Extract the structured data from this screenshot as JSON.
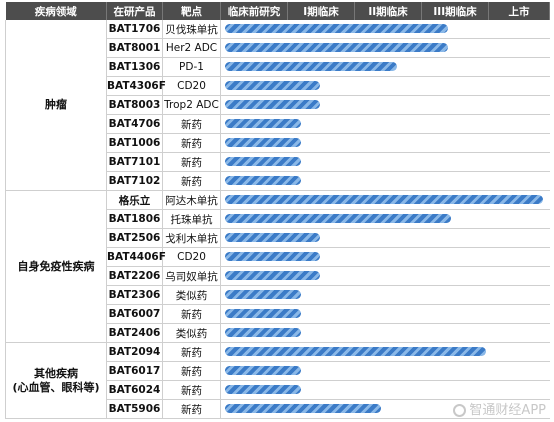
{
  "headers": [
    "疾病领域",
    "在研产品",
    "靶点",
    "临床前研究",
    "I期临床",
    "II期临床",
    "III期临床",
    "上市"
  ],
  "bar_color": "#3b7bc7",
  "stages": [
    "preclinical",
    "phase1",
    "phase2",
    "phase3",
    "market"
  ],
  "groups": [
    {
      "area": "肿瘤",
      "rows": [
        {
          "product": "BAT1706",
          "target": "贝伐珠单抗",
          "progress": 0.7
        },
        {
          "product": "BAT8001",
          "target": "Her2 ADC",
          "progress": 0.7
        },
        {
          "product": "BAT1306",
          "target": "PD-1",
          "progress": 0.54
        },
        {
          "product": "BAT4306F",
          "target": "CD20",
          "progress": 0.3
        },
        {
          "product": "BAT8003",
          "target": "Trop2 ADC",
          "progress": 0.3
        },
        {
          "product": "BAT4706",
          "target": "新药",
          "progress": 0.24
        },
        {
          "product": "BAT1006",
          "target": "新药",
          "progress": 0.24
        },
        {
          "product": "BAT7101",
          "target": "新药",
          "progress": 0.24
        },
        {
          "product": "BAT7102",
          "target": "新药",
          "progress": 0.24
        }
      ]
    },
    {
      "area": "自身免疫性疾病",
      "rows": [
        {
          "product": "格乐立",
          "target": "阿达木单抗",
          "progress": 1.0
        },
        {
          "product": "BAT1806",
          "target": "托珠单抗",
          "progress": 0.71
        },
        {
          "product": "BAT2506",
          "target": "戈利木单抗",
          "progress": 0.3
        },
        {
          "product": "BAT4406F",
          "target": "CD20",
          "progress": 0.3
        },
        {
          "product": "BAT2206",
          "target": "乌司奴单抗",
          "progress": 0.3
        },
        {
          "product": "BAT2306",
          "target": "类似药",
          "progress": 0.24
        },
        {
          "product": "BAT6007",
          "target": "新药",
          "progress": 0.24
        },
        {
          "product": "BAT2406",
          "target": "类似药",
          "progress": 0.24
        }
      ]
    },
    {
      "area": "其他疾病\n(心血管、眼科等)",
      "rows": [
        {
          "product": "BAT2094",
          "target": "新药",
          "progress": 0.82
        },
        {
          "product": "BAT6017",
          "target": "新药",
          "progress": 0.24
        },
        {
          "product": "BAT6024",
          "target": "新药",
          "progress": 0.24
        },
        {
          "product": "BAT5906",
          "target": "新药",
          "progress": 0.49
        }
      ]
    }
  ],
  "watermark": "智通财经APP"
}
